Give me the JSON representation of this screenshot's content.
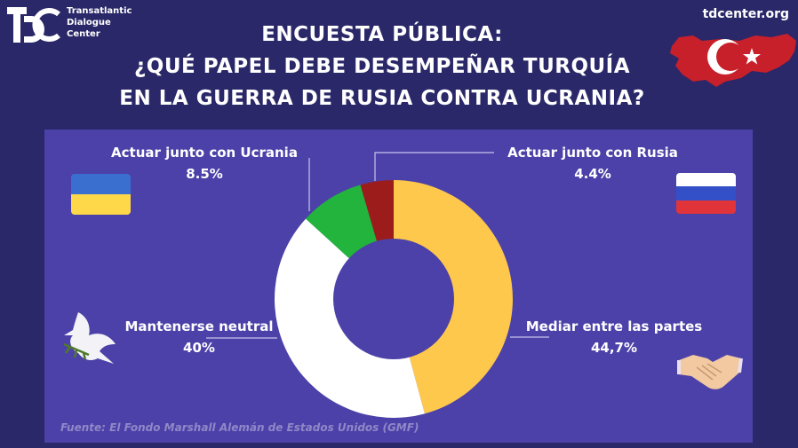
{
  "header": {
    "org_lines": [
      "Transatlantic",
      "Dialogue",
      "Center"
    ],
    "site": "tdcenter.org",
    "title_lines": [
      "ENCUESTA PÚBLICA:",
      "¿QUÉ PAPEL DEBE DESEMPEÑAR TURQUÍA",
      "EN LA GUERRA DE RUSIA CONTRA UCRANIA?"
    ]
  },
  "source": "Fuente: El Fondo Marshall Alemán de Estados Unidos (GMF)",
  "colors": {
    "background": "#2a2868",
    "panel": "#4c41a8"
  },
  "chart_data": {
    "type": "pie",
    "donut": true,
    "slices": [
      {
        "label": "Mediar entre las partes",
        "value": 44.7,
        "display": "44,7%",
        "color": "#fec84c"
      },
      {
        "label": "Mantenerse neutral",
        "value": 40,
        "display": "40%",
        "color": "#ffffff"
      },
      {
        "label": "Actuar junto con Ucrania",
        "value": 8.5,
        "display": "8.5%",
        "color": "#22b43c"
      },
      {
        "label": "Actuar junto con Rusia",
        "value": 4.4,
        "display": "4.4%",
        "color": "#9c1c1c"
      }
    ]
  }
}
